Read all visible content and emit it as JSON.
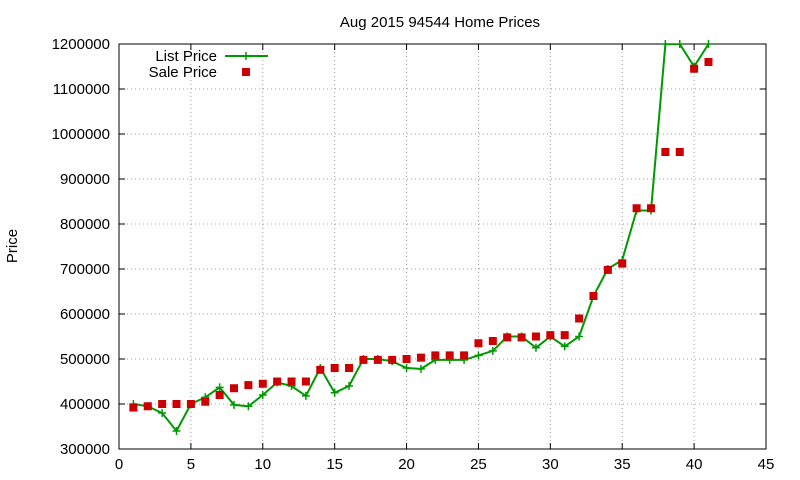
{
  "chart_data": {
    "type": "line",
    "title": "Aug 2015 94544 Home Prices",
    "xlabel": "",
    "ylabel": "Price",
    "xlim": [
      0,
      45
    ],
    "ylim": [
      300000,
      1200000
    ],
    "xticks": [
      0,
      5,
      10,
      15,
      20,
      25,
      30,
      35,
      40,
      45
    ],
    "yticks": [
      300000,
      400000,
      500000,
      600000,
      700000,
      800000,
      900000,
      1000000,
      1100000,
      1200000
    ],
    "grid": true,
    "legend_position": "top-left",
    "series": [
      {
        "name": "List Price",
        "style": "line-with-plus-markers",
        "color": "#009900",
        "x": [
          1,
          2,
          3,
          4,
          5,
          6,
          7,
          8,
          9,
          10,
          11,
          12,
          13,
          14,
          15,
          16,
          17,
          18,
          19,
          20,
          21,
          22,
          23,
          24,
          25,
          26,
          27,
          28,
          29,
          30,
          31,
          32,
          33,
          34,
          35,
          36,
          37,
          38,
          39,
          40,
          41
        ],
        "values": [
          400000,
          395000,
          380000,
          340000,
          400000,
          415000,
          437000,
          398000,
          395000,
          420000,
          448000,
          440000,
          418000,
          480000,
          425000,
          440000,
          500000,
          500000,
          495000,
          480000,
          478000,
          498000,
          498000,
          498000,
          508000,
          518000,
          550000,
          550000,
          525000,
          550000,
          528000,
          550000,
          640000,
          700000,
          720000,
          830000,
          830000,
          1200000,
          1200000,
          1150000,
          1200000
        ]
      },
      {
        "name": "Sale Price",
        "style": "square-markers",
        "color": "#cc0000",
        "x": [
          1,
          2,
          3,
          4,
          5,
          6,
          7,
          8,
          9,
          10,
          11,
          12,
          13,
          14,
          15,
          16,
          17,
          18,
          19,
          20,
          21,
          22,
          23,
          24,
          25,
          26,
          27,
          28,
          29,
          30,
          31,
          32,
          33,
          34,
          35,
          36,
          37,
          38,
          39,
          40,
          41
        ],
        "values": [
          392000,
          395000,
          400000,
          400000,
          400000,
          405000,
          420000,
          435000,
          442000,
          445000,
          450000,
          450000,
          450000,
          476000,
          480000,
          480000,
          498000,
          498000,
          498000,
          500000,
          503000,
          508000,
          508000,
          508000,
          535000,
          540000,
          548000,
          548000,
          550000,
          553000,
          553000,
          590000,
          640000,
          698000,
          712000,
          835000,
          835000,
          960000,
          960000,
          1145000,
          1160000
        ]
      }
    ]
  }
}
